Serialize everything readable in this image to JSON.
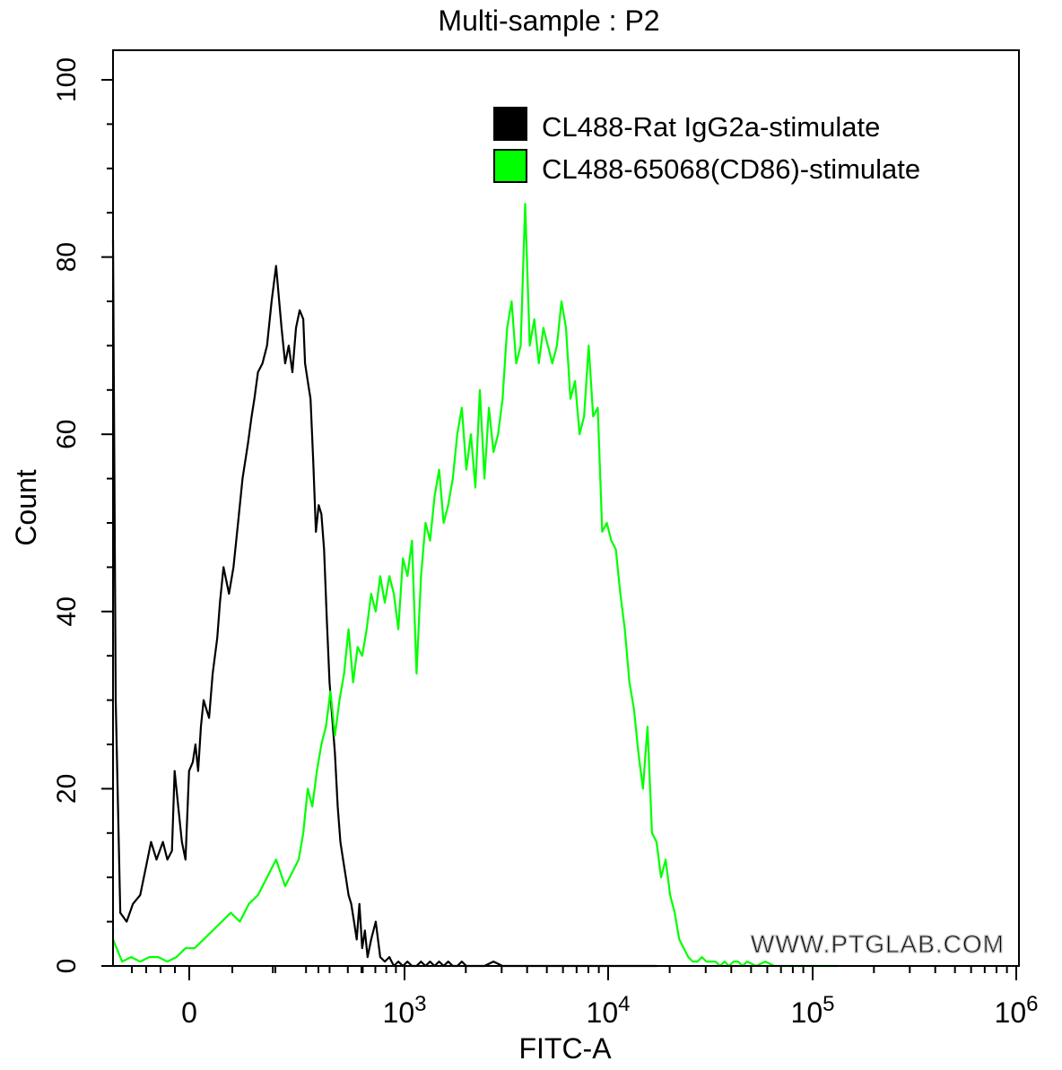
{
  "chart_data": {
    "type": "line",
    "title": "Multi-sample : P2",
    "xlabel": "FITC-A",
    "ylabel": "Count",
    "ylim": [
      0,
      100
    ],
    "y_ticks": [
      "0",
      "20",
      "40",
      "60",
      "80",
      "100"
    ],
    "x_ticks": [
      {
        "base": "0",
        "exp": ""
      },
      {
        "base": "10",
        "exp": "3"
      },
      {
        "base": "10",
        "exp": "4"
      },
      {
        "base": "10",
        "exp": "5"
      },
      {
        "base": "10",
        "exp": "6"
      }
    ],
    "x_scale": "biexponential (axis coordinate 0 = left edge, 1 = right edge)",
    "legend_position": "top-right",
    "watermark": "WWW.PTGLAB.COM",
    "series": [
      {
        "name": "CL488-Rat IgG2a-stimulate",
        "color": "#000000",
        "x": [
          0.0,
          0.003,
          0.008,
          0.015,
          0.022,
          0.03,
          0.036,
          0.042,
          0.048,
          0.055,
          0.06,
          0.065,
          0.068,
          0.072,
          0.076,
          0.08,
          0.084,
          0.088,
          0.091,
          0.094,
          0.097,
          0.1,
          0.103,
          0.106,
          0.11,
          0.115,
          0.118,
          0.122,
          0.128,
          0.133,
          0.138,
          0.143,
          0.149,
          0.153,
          0.156,
          0.16,
          0.165,
          0.17,
          0.175,
          0.18,
          0.186,
          0.19,
          0.194,
          0.198,
          0.202,
          0.206,
          0.21,
          0.212,
          0.215,
          0.218,
          0.221,
          0.224,
          0.227,
          0.23,
          0.233,
          0.236,
          0.239,
          0.242,
          0.245,
          0.248,
          0.251,
          0.254,
          0.257,
          0.26,
          0.263,
          0.266,
          0.269,
          0.272,
          0.275,
          0.278,
          0.281,
          0.285,
          0.29,
          0.295,
          0.3,
          0.305,
          0.31,
          0.315,
          0.32,
          0.325,
          0.33,
          0.335,
          0.34,
          0.345,
          0.35,
          0.355,
          0.36,
          0.365,
          0.37,
          0.375,
          0.38,
          0.385,
          0.39,
          0.395,
          0.4,
          0.41,
          0.42,
          0.43,
          0.44,
          0.45,
          0.47,
          0.49,
          0.51,
          0.52,
          0.53,
          0.54,
          0.55,
          0.56,
          0.57,
          0.58,
          0.6
        ],
        "y": [
          82,
          30,
          6,
          5,
          7,
          8,
          11,
          14,
          12,
          14,
          12,
          13,
          22,
          18,
          14,
          12,
          22,
          23,
          25,
          22,
          27,
          30,
          29,
          28,
          33,
          37,
          41,
          45,
          42,
          45,
          50,
          55,
          59,
          62,
          64,
          67,
          68,
          70,
          75,
          79,
          72,
          68,
          70,
          67,
          72,
          74,
          73,
          68,
          66,
          64,
          57,
          49,
          52,
          51,
          47,
          39,
          32,
          28,
          24,
          18,
          14,
          12,
          10,
          8,
          7,
          5,
          3,
          7,
          2,
          4,
          1,
          3,
          5,
          1,
          0.5,
          1,
          0,
          0.5,
          0,
          0.5,
          0,
          0,
          0.5,
          0,
          0.5,
          0,
          0.5,
          0,
          0.5,
          0,
          0,
          0.5,
          0,
          0,
          0,
          0,
          0.5,
          0,
          0,
          0,
          0,
          0,
          0,
          0,
          0,
          0,
          0,
          0,
          0,
          0,
          0
        ]
      },
      {
        "name": "CL488-65068(CD86)-stimulate",
        "color": "#00ff00",
        "x": [
          0.0,
          0.01,
          0.02,
          0.03,
          0.04,
          0.05,
          0.06,
          0.07,
          0.08,
          0.09,
          0.1,
          0.11,
          0.12,
          0.13,
          0.14,
          0.15,
          0.16,
          0.17,
          0.18,
          0.19,
          0.2,
          0.205,
          0.21,
          0.215,
          0.22,
          0.225,
          0.23,
          0.235,
          0.24,
          0.245,
          0.25,
          0.255,
          0.26,
          0.265,
          0.27,
          0.275,
          0.28,
          0.285,
          0.29,
          0.295,
          0.3,
          0.305,
          0.31,
          0.315,
          0.32,
          0.325,
          0.33,
          0.335,
          0.34,
          0.345,
          0.35,
          0.355,
          0.36,
          0.365,
          0.37,
          0.375,
          0.38,
          0.385,
          0.39,
          0.395,
          0.4,
          0.405,
          0.41,
          0.415,
          0.42,
          0.425,
          0.43,
          0.435,
          0.44,
          0.445,
          0.45,
          0.455,
          0.46,
          0.465,
          0.47,
          0.475,
          0.48,
          0.485,
          0.49,
          0.495,
          0.5,
          0.505,
          0.51,
          0.515,
          0.52,
          0.525,
          0.53,
          0.535,
          0.54,
          0.545,
          0.55,
          0.555,
          0.56,
          0.565,
          0.57,
          0.575,
          0.58,
          0.585,
          0.59,
          0.595,
          0.6,
          0.605,
          0.61,
          0.615,
          0.62,
          0.625,
          0.63,
          0.635,
          0.64,
          0.645,
          0.65,
          0.655,
          0.66,
          0.665,
          0.67,
          0.675,
          0.68,
          0.685,
          0.69,
          0.695,
          0.7,
          0.71,
          0.72,
          0.73,
          0.74,
          0.75,
          0.76,
          0.77,
          0.78,
          0.79,
          0.8
        ],
        "y": [
          3,
          0.5,
          1,
          0.5,
          1,
          1,
          0.5,
          1,
          2,
          2,
          3,
          4,
          5,
          6,
          5,
          7,
          8,
          10,
          12,
          9,
          11,
          12,
          15,
          20,
          18,
          22,
          25,
          27,
          31,
          26,
          30,
          33,
          38,
          32,
          36,
          35,
          38,
          42,
          40,
          44,
          41,
          44,
          42,
          38,
          46,
          44,
          48,
          33,
          44,
          50,
          48,
          53,
          56,
          50,
          52,
          55,
          60,
          63,
          56,
          60,
          54,
          65,
          55,
          63,
          58,
          60,
          64,
          72,
          75,
          68,
          70,
          86,
          70,
          73,
          68,
          72,
          70,
          68,
          70,
          75,
          72,
          64,
          66,
          60,
          62,
          70,
          62,
          63,
          49,
          50,
          48,
          47,
          42,
          38,
          32,
          29,
          24,
          20,
          27,
          15,
          14,
          10,
          12,
          8,
          6,
          3,
          2,
          1,
          0.5,
          0.5,
          1,
          0.5,
          0.5,
          0.5,
          0,
          0.5,
          0,
          0.5,
          0.5,
          0,
          0.5,
          0,
          0.5,
          0,
          0,
          0,
          0,
          0,
          0,
          0,
          0
        ]
      }
    ]
  }
}
